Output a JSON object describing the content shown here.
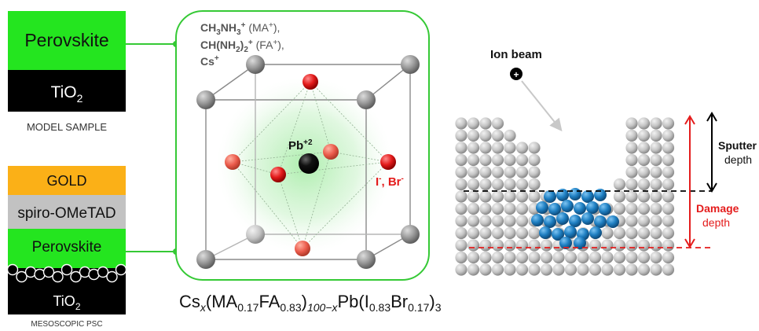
{
  "model_sample": {
    "perovskite": "Perovskite",
    "tio2_base": "TiO",
    "tio2_sub": "2",
    "caption": "MODEL SAMPLE"
  },
  "mesoscopic": {
    "gold": "GOLD",
    "spiro": "spiro-OMeTAD",
    "perovskite": "Perovskite",
    "tio2_base": "TiO",
    "tio2_sub": "2",
    "caption": "MESOSCOPIC PSC"
  },
  "crystal": {
    "a_cations": [
      {
        "base": "CH",
        "sub1": "3",
        "mid": "NH",
        "sub2": "3",
        "sup": "+",
        "tail": " (MA",
        "tailsup": "+",
        "end": "),"
      },
      {
        "base": "CH(NH",
        "sub1": "2",
        "mid": ")",
        "sub2": "2",
        "sup": "+",
        "tail": " (FA",
        "tailsup": "+",
        "end": "),"
      },
      {
        "base": "Cs",
        "sup": "+"
      }
    ],
    "b_site": "Pb",
    "b_site_charge": "+2",
    "x_site_1": "I",
    "x_site_1_charge": "-",
    "x_site_sep": ", Br",
    "x_site_2_charge": "-"
  },
  "formula": {
    "parts": [
      {
        "t": "Cs",
        "s": "x"
      },
      {
        "t": "(MA",
        "s": "0.17"
      },
      {
        "t": "FA",
        "s": "0.83"
      },
      {
        "t": ")",
        "s": "100−x"
      },
      {
        "t": "Pb(I",
        "s": "0.83"
      },
      {
        "t": "Br",
        "s": "0.17"
      },
      {
        "t": ")",
        "s": "3"
      }
    ]
  },
  "sputter": {
    "ion_beam": "Ion beam",
    "ion_symbol": "+",
    "sputter_label": "Sputter",
    "sputter_depth": "depth",
    "damage_label": "Damage",
    "damage_depth": "depth"
  },
  "colors": {
    "perovskite_green": "#24e51f",
    "tio2_black": "#000000",
    "gold": "#fbb017",
    "spiro": "#c2c2c2",
    "frame_green": "#35c935",
    "halide_red": "#e41c1c",
    "damage_red": "#e41c1c",
    "implant_blue": "#1f7fbf",
    "atom_grey": "#a8a8a8"
  }
}
